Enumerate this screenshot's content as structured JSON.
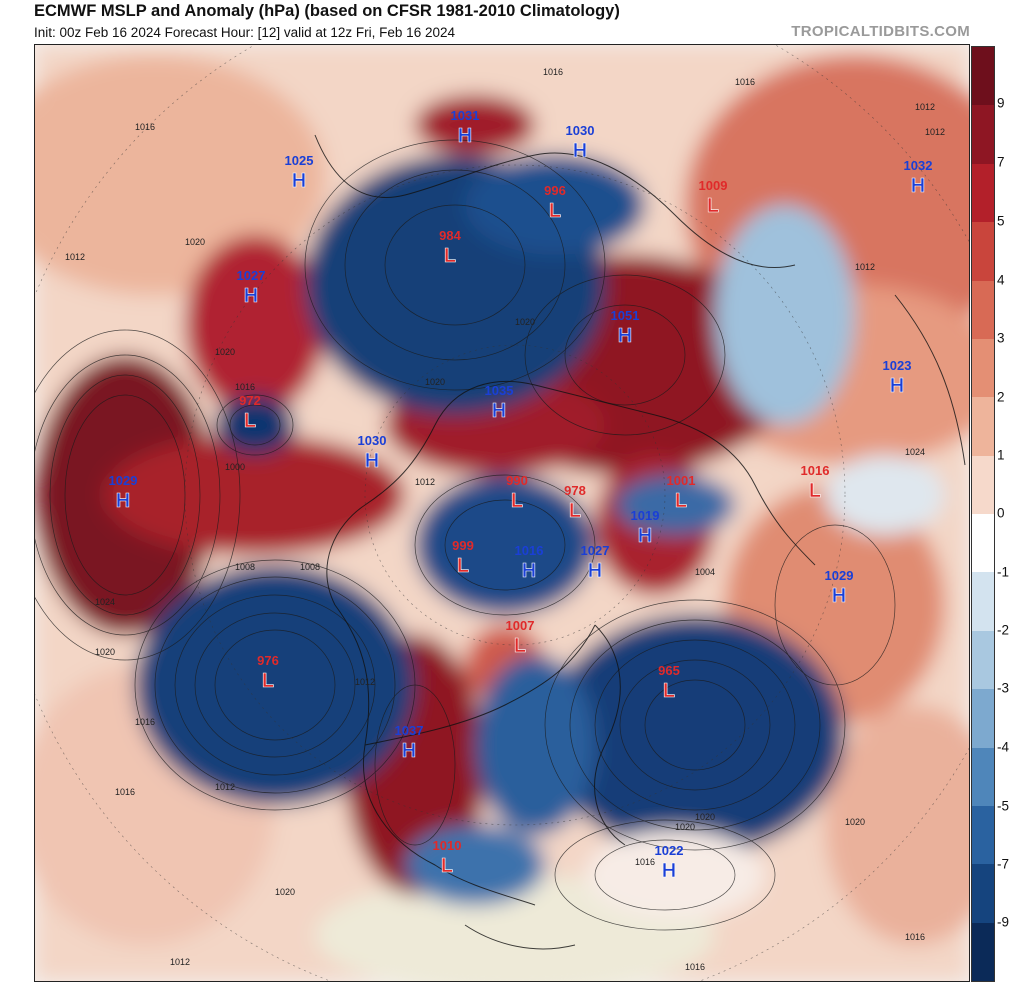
{
  "header": {
    "title": "ECMWF MSLP and Anomaly (hPa) (based on CFSR 1981-2010 Climatology)",
    "subtitle": "Init: 00z Feb 16 2024   Forecast Hour: [12]   valid at 12z Fri, Feb 16 2024",
    "source": "TROPICALTIDBITS.COM"
  },
  "colorbar": {
    "labels": [
      "9",
      "7",
      "5",
      "4",
      "3",
      "2",
      "1",
      "0",
      "-1",
      "-2",
      "-3",
      "-4",
      "-5",
      "-7",
      "-9"
    ],
    "colors": [
      "#6e0f1c",
      "#8e1623",
      "#b3202a",
      "#c9453c",
      "#d86a55",
      "#e48f74",
      "#eeb49b",
      "#f6d9cb",
      "#ffffff",
      "#d3e3ef",
      "#a9c8e0",
      "#7da9cf",
      "#4f86ba",
      "#2a62a0",
      "#15447e",
      "#0b2a58"
    ]
  },
  "pressure_centers": [
    {
      "type": "H",
      "value": "1031"
    },
    {
      "type": "H",
      "value": "1030"
    },
    {
      "type": "L",
      "value": "996"
    },
    {
      "type": "L",
      "value": "984"
    },
    {
      "type": "H",
      "value": "1025"
    },
    {
      "type": "L",
      "value": "1009"
    },
    {
      "type": "H",
      "value": "1032"
    },
    {
      "type": "H",
      "value": "1027"
    },
    {
      "type": "H",
      "value": "1051"
    },
    {
      "type": "H",
      "value": "1023"
    },
    {
      "type": "L",
      "value": "972"
    },
    {
      "type": "H",
      "value": "1035"
    },
    {
      "type": "H",
      "value": "1030"
    },
    {
      "type": "H",
      "value": "1029"
    },
    {
      "type": "L",
      "value": "990"
    },
    {
      "type": "L",
      "value": "978"
    },
    {
      "type": "L",
      "value": "1001"
    },
    {
      "type": "L",
      "value": "1016"
    },
    {
      "type": "H",
      "value": "1019"
    },
    {
      "type": "L",
      "value": "999"
    },
    {
      "type": "H",
      "value": "1016"
    },
    {
      "type": "H",
      "value": "1027"
    },
    {
      "type": "H",
      "value": "1029"
    },
    {
      "type": "L",
      "value": "1007"
    },
    {
      "type": "L",
      "value": "976"
    },
    {
      "type": "L",
      "value": "965"
    },
    {
      "type": "H",
      "value": "1037"
    },
    {
      "type": "L",
      "value": "1010"
    },
    {
      "type": "H",
      "value": "1022"
    }
  ],
  "contour_labels": [
    "1012",
    "1016",
    "1016",
    "1012",
    "1016",
    "1020",
    "1016",
    "1012",
    "1000",
    "1020",
    "1024",
    "1008",
    "1020",
    "1016",
    "1020",
    "1016",
    "1020",
    "1012",
    "1016",
    "1012",
    "1008",
    "1012",
    "1020",
    "1024",
    "1020",
    "1020",
    "1016",
    "1020",
    "1012",
    "1016",
    "1012",
    "1004"
  ]
}
